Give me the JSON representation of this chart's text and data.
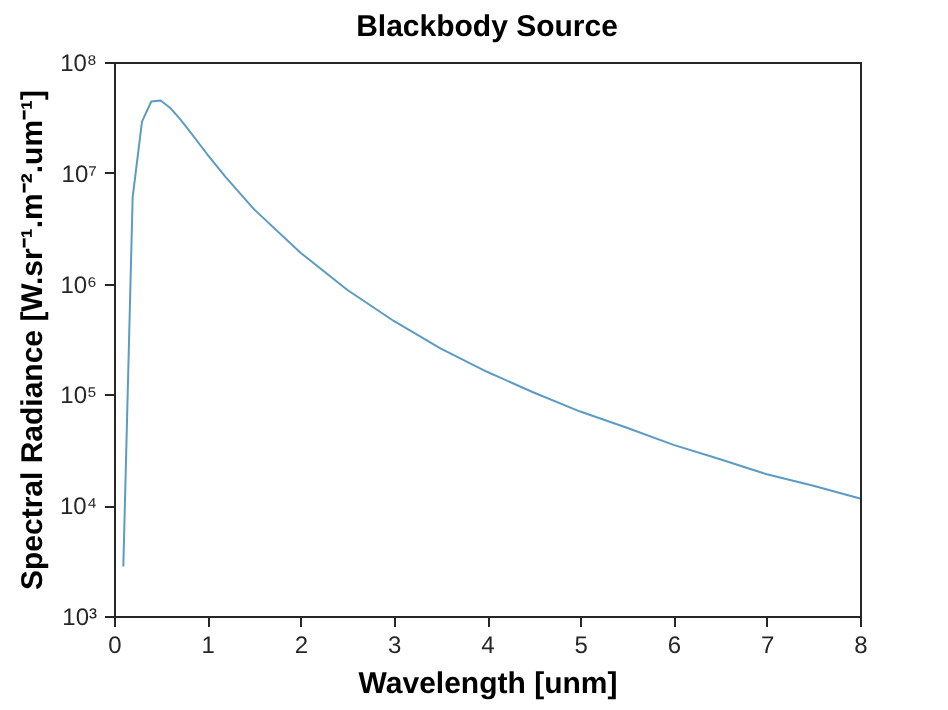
{
  "chart_data": {
    "type": "line",
    "title": "Blackbody Source",
    "xlabel": "Wavelength [unm]",
    "ylabel": "Spectral Radiance [W.sr⁻¹.m⁻².um⁻¹]",
    "log": "y",
    "grid": false,
    "marker": "none",
    "line_style": "solid",
    "xlim": [
      0,
      8
    ],
    "xticks": [
      0,
      1,
      2,
      3,
      4,
      5,
      6,
      7,
      8
    ],
    "ylim": [
      1000,
      100000000
    ],
    "yticks": [
      {
        "value": 1000,
        "label": "10³"
      },
      {
        "value": 10000,
        "label": "10⁴"
      },
      {
        "value": 100000,
        "label": "10⁵"
      },
      {
        "value": 1000000,
        "label": "10⁶"
      },
      {
        "value": 10000000,
        "label": "10⁷"
      },
      {
        "value": 100000000,
        "label": "10⁸"
      }
    ],
    "series": [
      {
        "color": "#5b9bc4",
        "x": [
          0.1,
          0.2,
          0.3,
          0.4,
          0.5,
          0.6,
          0.7,
          0.8,
          1.0,
          1.2,
          1.5,
          2,
          2.5,
          3,
          3.5,
          4,
          4.5,
          5,
          5.5,
          6,
          6.5,
          7,
          7.5,
          8
        ],
        "values": [
          2800,
          6000000,
          29000000,
          44000000,
          45000000,
          38700000,
          31200000,
          24400000,
          14700000,
          9100000,
          4700000,
          1900000,
          880000,
          460000,
          260000,
          160000,
          104000,
          70000,
          50000,
          35000,
          26000,
          19000,
          15000,
          11500
        ]
      }
    ]
  }
}
